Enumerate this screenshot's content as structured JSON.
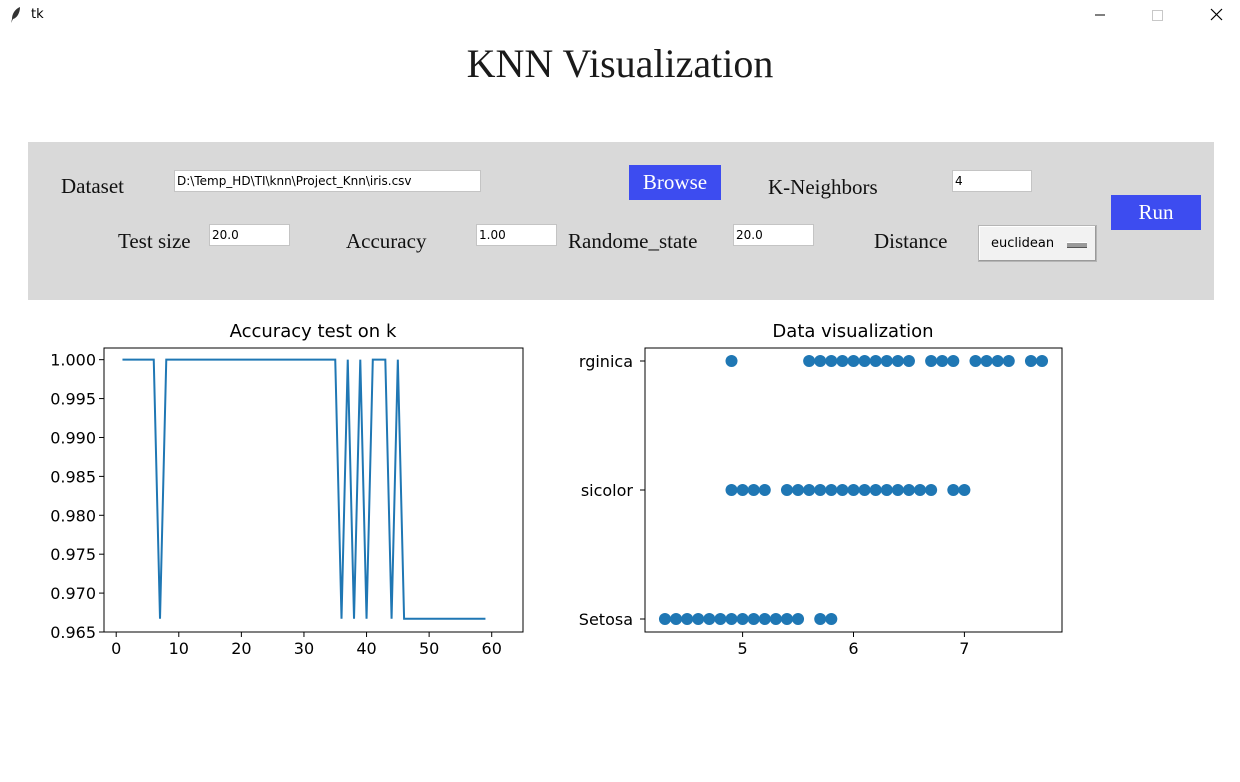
{
  "window": {
    "title": "tk"
  },
  "header": {
    "title": "KNN Visualization"
  },
  "form": {
    "dataset_label": "Dataset",
    "dataset_path": "D:\\Temp_HD\\TI\\knn\\Project_Knn\\iris.csv",
    "browse_label": "Browse",
    "k_label": "K-Neighbors",
    "k_value": "4",
    "run_label": "Run",
    "test_size_label": "Test size",
    "test_size_value": "20.0",
    "accuracy_label": "Accuracy",
    "accuracy_value": "1.00",
    "random_state_label": "Randome_state",
    "random_state_value": "20.0",
    "distance_label": "Distance",
    "distance_value": "euclidean"
  },
  "colors": {
    "accent": "#3d4cf0",
    "panel": "#d9d9d9",
    "series": "#1f77b4"
  },
  "chart_data": [
    {
      "type": "line",
      "title": "Accuracy test on k",
      "xlabel": "",
      "ylabel": "",
      "xlim": [
        -1.95,
        65
      ],
      "ylim": [
        0.965,
        1.0015
      ],
      "xticks": [
        0,
        10,
        20,
        30,
        40,
        50,
        60
      ],
      "yticks": [
        0.965,
        0.97,
        0.975,
        0.98,
        0.985,
        0.99,
        0.995,
        1.0
      ],
      "ytick_labels": [
        "0.965",
        "0.970",
        "0.975",
        "0.980",
        "0.985",
        "0.990",
        "0.995",
        "1.000"
      ],
      "x": [
        1,
        2,
        3,
        4,
        5,
        6,
        7,
        8,
        9,
        10,
        11,
        12,
        13,
        14,
        15,
        16,
        17,
        18,
        19,
        20,
        21,
        22,
        23,
        24,
        25,
        26,
        27,
        28,
        29,
        30,
        31,
        32,
        33,
        34,
        35,
        36,
        37,
        38,
        39,
        40,
        41,
        42,
        43,
        44,
        45,
        46,
        47,
        48,
        49,
        50,
        51,
        52,
        53,
        54,
        55,
        56,
        57,
        58,
        59
      ],
      "y": [
        1.0,
        1.0,
        1.0,
        1.0,
        1.0,
        1.0,
        0.9667,
        1.0,
        1.0,
        1.0,
        1.0,
        1.0,
        1.0,
        1.0,
        1.0,
        1.0,
        1.0,
        1.0,
        1.0,
        1.0,
        1.0,
        1.0,
        1.0,
        1.0,
        1.0,
        1.0,
        1.0,
        1.0,
        1.0,
        1.0,
        1.0,
        1.0,
        1.0,
        1.0,
        1.0,
        0.9667,
        1.0,
        0.9667,
        1.0,
        0.9667,
        1.0,
        1.0,
        1.0,
        0.9667,
        1.0,
        0.9667,
        0.9667,
        0.9667,
        0.9667,
        0.9667,
        0.9667,
        0.9667,
        0.9667,
        0.9667,
        0.9667,
        0.9667,
        0.9667,
        0.9667,
        0.9667
      ],
      "grid": false
    },
    {
      "type": "scatter",
      "title": "Data visualization",
      "xlabel": "",
      "ylabel": "",
      "xlim": [
        4.12,
        7.88
      ],
      "xticks": [
        5,
        6,
        7
      ],
      "categories": [
        "Setosa",
        "Versicolor",
        "Virginica"
      ],
      "category_tick_labels": [
        "Setosa",
        "sicolor",
        "rginica"
      ],
      "series": [
        {
          "category": "Setosa",
          "x": [
            4.3,
            4.4,
            4.5,
            4.6,
            4.7,
            4.8,
            4.9,
            5.0,
            5.1,
            5.2,
            5.3,
            5.4,
            5.5,
            5.7,
            5.8
          ]
        },
        {
          "category": "Versicolor",
          "x": [
            4.9,
            5.0,
            5.1,
            5.2,
            5.4,
            5.5,
            5.6,
            5.7,
            5.8,
            5.9,
            6.0,
            6.1,
            6.2,
            6.3,
            6.4,
            6.5,
            6.6,
            6.7,
            6.9,
            7.0
          ]
        },
        {
          "category": "Virginica",
          "x": [
            4.9,
            5.6,
            5.7,
            5.8,
            5.9,
            6.0,
            6.1,
            6.2,
            6.3,
            6.4,
            6.5,
            6.7,
            6.8,
            6.9,
            7.1,
            7.2,
            7.3,
            7.4,
            7.6,
            7.7
          ]
        }
      ],
      "grid": false
    }
  ]
}
